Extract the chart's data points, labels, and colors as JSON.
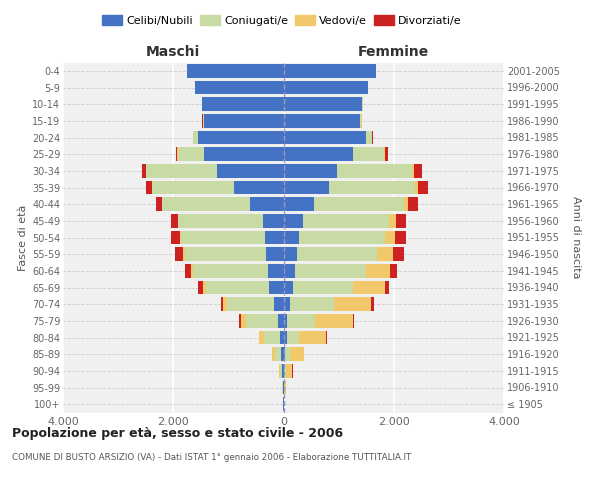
{
  "age_groups": [
    "100+",
    "95-99",
    "90-94",
    "85-89",
    "80-84",
    "75-79",
    "70-74",
    "65-69",
    "60-64",
    "55-59",
    "50-54",
    "45-49",
    "40-44",
    "35-39",
    "30-34",
    "25-29",
    "20-24",
    "15-19",
    "10-14",
    "5-9",
    "0-4"
  ],
  "birth_years": [
    "≤ 1905",
    "1906-1910",
    "1911-1915",
    "1916-1920",
    "1921-1925",
    "1926-1930",
    "1931-1935",
    "1936-1940",
    "1941-1945",
    "1946-1950",
    "1951-1955",
    "1956-1960",
    "1961-1965",
    "1966-1970",
    "1971-1975",
    "1976-1980",
    "1981-1985",
    "1986-1990",
    "1991-1995",
    "1996-2000",
    "2001-2005"
  ],
  "maschi_celibe": [
    5,
    12,
    25,
    45,
    70,
    100,
    180,
    260,
    290,
    310,
    330,
    380,
    600,
    900,
    1200,
    1450,
    1550,
    1450,
    1480,
    1600,
    1750
  ],
  "maschi_coniugato": [
    4,
    12,
    45,
    110,
    280,
    580,
    850,
    1150,
    1350,
    1480,
    1530,
    1530,
    1600,
    1480,
    1290,
    470,
    90,
    15,
    4,
    1,
    0
  ],
  "maschi_vedovo": [
    2,
    6,
    18,
    55,
    95,
    95,
    75,
    55,
    35,
    25,
    18,
    12,
    8,
    8,
    4,
    4,
    2,
    1,
    0,
    0,
    0
  ],
  "maschi_divorziato": [
    0,
    0,
    2,
    4,
    8,
    25,
    35,
    90,
    120,
    160,
    170,
    120,
    110,
    110,
    70,
    25,
    8,
    4,
    2,
    0,
    0
  ],
  "femmine_celibe": [
    4,
    8,
    18,
    35,
    55,
    70,
    110,
    165,
    205,
    245,
    275,
    345,
    560,
    820,
    970,
    1260,
    1490,
    1390,
    1430,
    1530,
    1680
  ],
  "femmine_coniugata": [
    3,
    8,
    35,
    90,
    230,
    510,
    800,
    1100,
    1300,
    1460,
    1560,
    1570,
    1620,
    1570,
    1370,
    570,
    110,
    22,
    4,
    2,
    0
  ],
  "femmine_vedova": [
    8,
    35,
    110,
    240,
    490,
    680,
    680,
    580,
    430,
    285,
    190,
    120,
    75,
    45,
    25,
    18,
    8,
    4,
    2,
    0,
    0
  ],
  "femmine_divorziata": [
    0,
    2,
    4,
    8,
    12,
    25,
    45,
    75,
    120,
    190,
    190,
    190,
    190,
    190,
    140,
    55,
    18,
    7,
    2,
    0,
    0
  ],
  "colors": {
    "celibe": "#4472c4",
    "coniugato": "#c8dba4",
    "vedovo": "#f2c96a",
    "divorziato": "#cc2222"
  },
  "title": "Popolazione per età, sesso e stato civile - 2006",
  "subtitle": "COMUNE DI BUSTO ARSIZIO (VA) - Dati ISTAT 1° gennaio 2006 - Elaborazione TUTTITALIA.IT",
  "label_maschi": "Maschi",
  "label_femmine": "Femmine",
  "ylabel_left": "Fasce di età",
  "ylabel_right": "Anni di nascita",
  "xlim": 4000,
  "legend_labels": [
    "Celibi/Nubili",
    "Coniugati/e",
    "Vedovi/e",
    "Divorziati/e"
  ],
  "bg_color": "#f0f0f0",
  "xtick_labels": [
    "4.000",
    "2.000",
    "0",
    "2.000",
    "4.000"
  ]
}
